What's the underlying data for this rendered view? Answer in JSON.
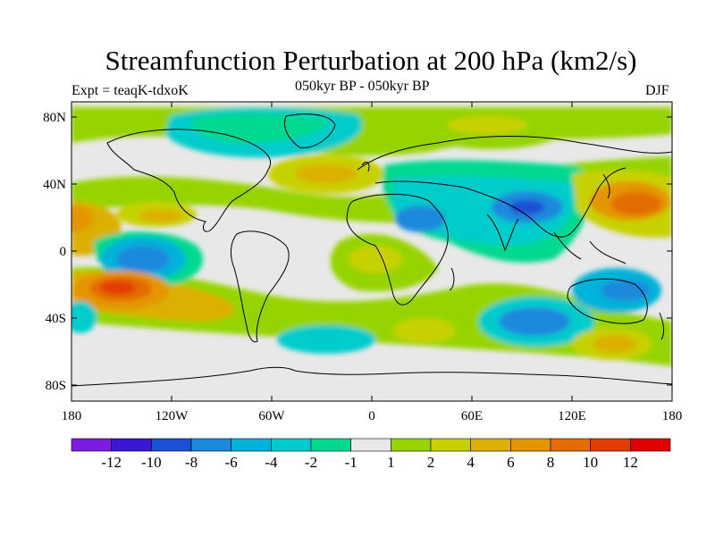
{
  "title": "Streamfunction Perturbation at 200 hPa (km2/s)",
  "subtitle": "050kyr BP - 050kyr BP",
  "experiment": "Expt = teaqK-tdxoK",
  "season": "DJF",
  "lat_ticks": [
    "80N",
    "40N",
    "0",
    "40S",
    "80S"
  ],
  "lon_ticks": [
    "180",
    "120W",
    "60W",
    "0",
    "60E",
    "120E",
    "180"
  ],
  "colorbar": {
    "colors": [
      "#7b1de0",
      "#3a16d6",
      "#1a4fd6",
      "#1c89dc",
      "#00b3d9",
      "#00cccc",
      "#00d98f",
      "#e8e8e8",
      "#96d400",
      "#c8d100",
      "#dcb000",
      "#e49600",
      "#e46c00",
      "#e43c00",
      "#e00000"
    ],
    "labels": [
      "-12",
      "-10",
      "-8",
      "-6",
      "-4",
      "-2",
      "-1",
      "1",
      "2",
      "4",
      "6",
      "8",
      "10",
      "12"
    ]
  },
  "colors": {
    "neutral": "#e8e8e8",
    "land_outline": "#000000"
  }
}
